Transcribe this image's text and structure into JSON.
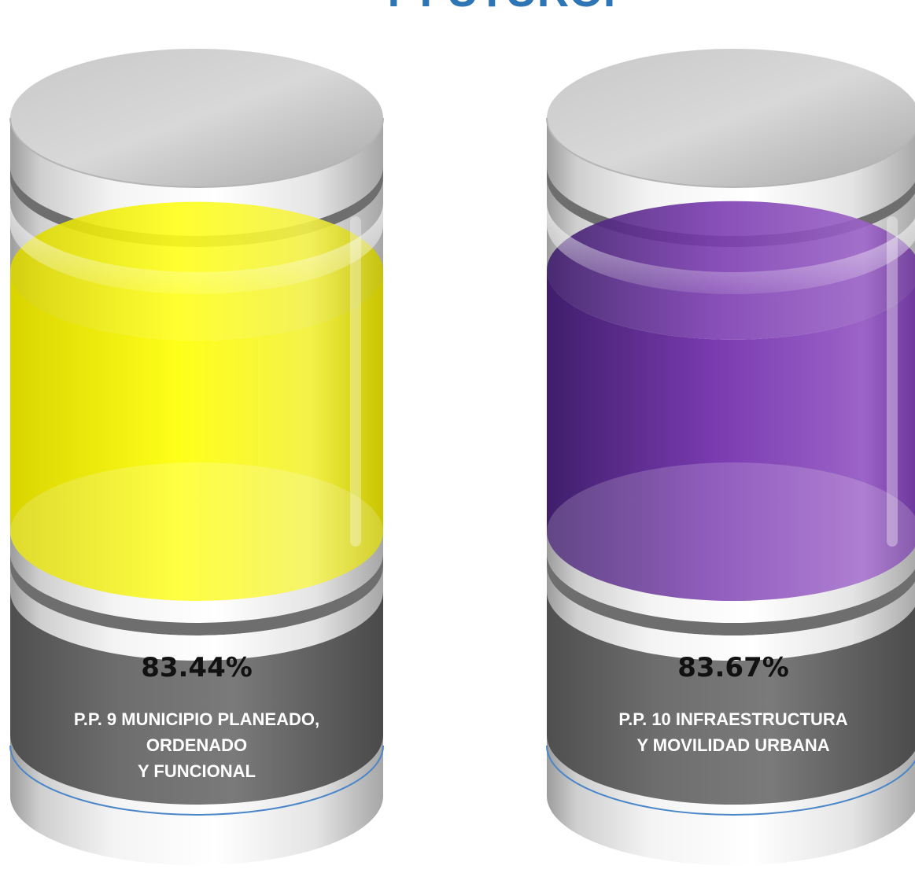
{
  "title": "Y FUTURO.",
  "chart_data": {
    "type": "bar",
    "style": "3d-cylinder-fill",
    "categories": [
      "P.P. 9 MUNICIPIO PLANEADO, ORDENADO Y FUNCIONAL",
      "P.P. 10 INFRAESTRUCTURA Y MOVILIDAD URBANA"
    ],
    "values": [
      83.44,
      83.67
    ],
    "unit": "%",
    "value_labels": [
      "83.44%",
      "83.67%"
    ],
    "label_lines": [
      [
        "P.P. 9 MUNICIPIO PLANEADO,",
        "ORDENADO",
        "Y FUNCIONAL"
      ],
      [
        "P.P. 10 INFRAESTRUCTURA",
        "Y MOVILIDAD URBANA"
      ]
    ],
    "colors": [
      "#F2F000",
      "#7030A0"
    ],
    "ylim": [
      0,
      100
    ],
    "grid": false,
    "legend": "none"
  }
}
